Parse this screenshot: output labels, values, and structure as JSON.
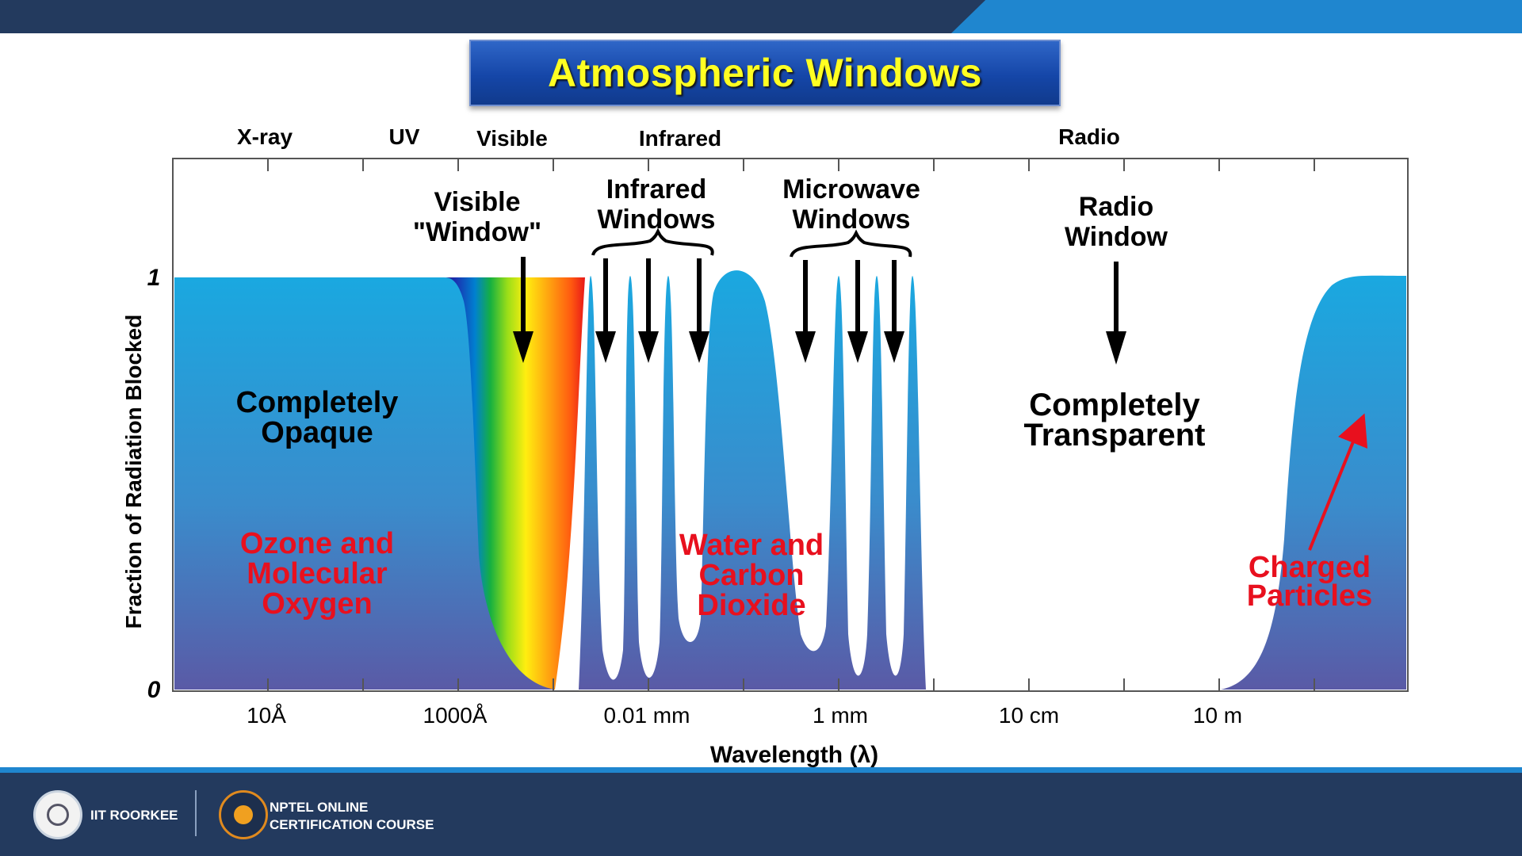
{
  "slide": {
    "title": "Atmospheric Windows"
  },
  "regions": {
    "xray": "X-ray",
    "uv": "UV",
    "visible": "Visible",
    "infrared": "Infrared",
    "radio": "Radio"
  },
  "axis": {
    "y_label": "Fraction of Radiation Blocked",
    "y_top": "1",
    "y_bottom": "0",
    "x_label": "Wavelength (λ)",
    "x_ticks": [
      "10Å",
      "1000Å",
      "0.01 mm",
      "1 mm",
      "10 cm",
      "10 m"
    ]
  },
  "annotations": {
    "visible_window": [
      "Visible",
      "\"Window\""
    ],
    "infrared_windows": [
      "Infrared",
      "Windows"
    ],
    "microwave_windows": [
      "Microwave",
      "Windows"
    ],
    "radio_window": [
      "Radio",
      "Window"
    ],
    "opaque": [
      "Completely",
      "Opaque"
    ],
    "transparent": [
      "Completely",
      "Transparent"
    ],
    "ozone": [
      "Ozone and",
      "Molecular",
      "Oxygen"
    ],
    "water": [
      "Water and",
      "Carbon",
      "Dioxide"
    ],
    "charged": [
      "Charged",
      "Particles"
    ]
  },
  "colors": {
    "absorption_top": "#1aa8e0",
    "absorption_bottom": "#5a5aa6",
    "red_label": "#e8101e",
    "title_text": "#ffff22"
  },
  "footer": {
    "institute": "IIT ROORKEE",
    "course_line1": "NPTEL ONLINE",
    "course_line2": "CERTIFICATION COURSE"
  }
}
